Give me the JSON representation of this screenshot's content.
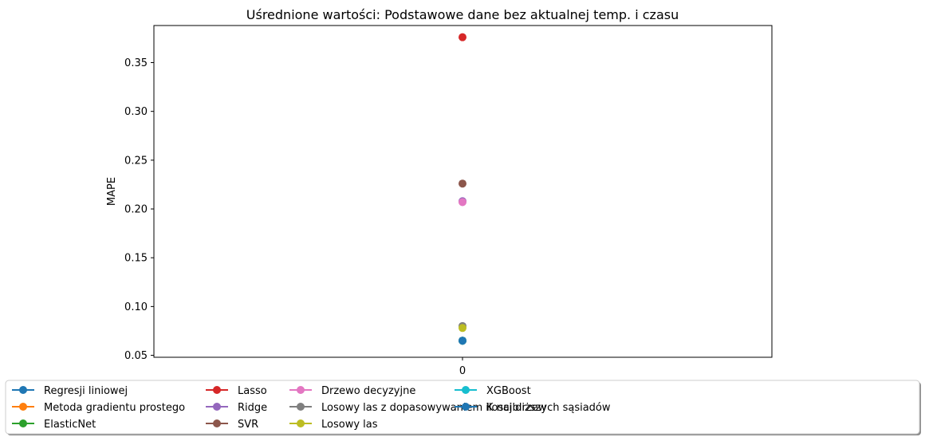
{
  "chart_data": {
    "type": "scatter",
    "title": "Uśrednione wartości: Podstawowe dane bez aktualnej temp. i czasu",
    "xlabel": "",
    "ylabel": "MAPE",
    "x_categories": [
      "0"
    ],
    "ylim": [
      0.048,
      0.388
    ],
    "yticks": [
      0.05,
      0.1,
      0.15,
      0.2,
      0.25,
      0.3,
      0.35
    ],
    "ytick_labels": [
      "0.05",
      "0.10",
      "0.15",
      "0.20",
      "0.25",
      "0.30",
      "0.35"
    ],
    "grid": false,
    "legend_position": "bottom",
    "legend_columns": 5,
    "series": [
      {
        "name": "Regresji liniowej",
        "color": "#1f77b4",
        "x": 0,
        "y": 0.065
      },
      {
        "name": "Metoda gradientu prostego",
        "color": "#ff7f0e",
        "x": 0,
        "y": 0.065
      },
      {
        "name": "ElasticNet",
        "color": "#2ca02c",
        "x": 0,
        "y": 0.065
      },
      {
        "name": "Lasso",
        "color": "#d62728",
        "x": 0,
        "y": 0.376
      },
      {
        "name": "Ridge",
        "color": "#9467bd",
        "x": 0,
        "y": 0.208
      },
      {
        "name": "SVR",
        "color": "#8c564b",
        "x": 0,
        "y": 0.226
      },
      {
        "name": "Drzewo decyzyjne",
        "color": "#e377c2",
        "x": 0,
        "y": 0.207
      },
      {
        "name": "Losowy las z dopasowywaniem ilosci drzew",
        "color": "#7f7f7f",
        "x": 0,
        "y": 0.08
      },
      {
        "name": "Losowy las",
        "color": "#bcbd22",
        "x": 0,
        "y": 0.078
      },
      {
        "name": "XGBoost",
        "color": "#17becf",
        "x": 0,
        "y": 0.065
      },
      {
        "name": "K najbliższych sąsiadów",
        "color": "#1f77b4",
        "x": 0,
        "y": 0.065
      }
    ]
  }
}
